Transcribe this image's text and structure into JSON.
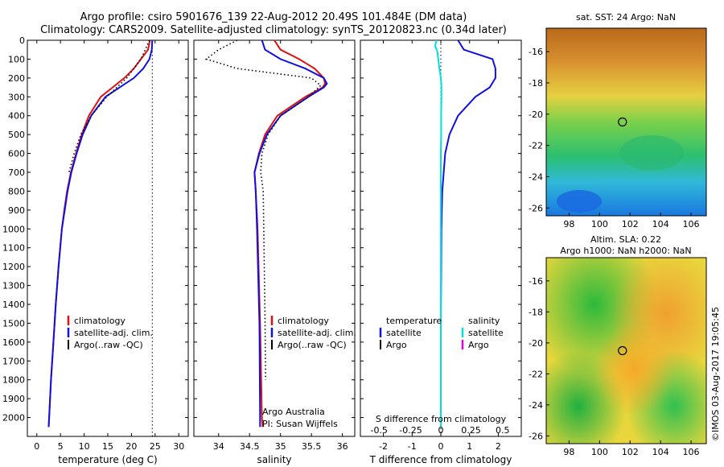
{
  "header": {
    "line1": "Argo profile: csiro 5901676_139 22-Aug-2012 20.49S 101.484E (DM data)",
    "line2": "Climatology: CARS2009. Satellite-adjusted climatology: synTS_20120823.nc (0.34d later)"
  },
  "depth_ticks": [
    "0",
    "100",
    "200",
    "300",
    "400",
    "500",
    "600",
    "700",
    "800",
    "900",
    "1000",
    "1100",
    "1200",
    "1300",
    "1400",
    "1500",
    "1600",
    "1700",
    "1800",
    "1900",
    "2000"
  ],
  "colors": {
    "climatology": "#e01010",
    "satellite": "#1010e0",
    "argo": "#000000",
    "sal_satellite": "#00e0e0",
    "sal_argo": "#e000e0"
  },
  "chart_data": [
    {
      "type": "line",
      "xlabel": "temperature (deg C)",
      "x_ticks": [
        "0",
        "5",
        "10",
        "15",
        "20",
        "25",
        "30"
      ],
      "xlim": [
        -2,
        32
      ],
      "ylim": [
        2100,
        0
      ],
      "legend": [
        "climatology",
        "satellite-adj. clim.",
        "Argo(..raw -QC)"
      ],
      "reference_line_x": 24.4,
      "series": [
        {
          "name": "climatology",
          "color": "#e01010",
          "depth": [
            0,
            50,
            100,
            150,
            200,
            250,
            300,
            400,
            500,
            600,
            700,
            800,
            900,
            1000,
            1200,
            1400,
            1600,
            1800,
            2000,
            2050
          ],
          "values": [
            23.9,
            23.5,
            22.0,
            20.5,
            18.5,
            16.0,
            13.5,
            11.0,
            9.5,
            8.3,
            7.2,
            6.4,
            5.8,
            5.3,
            4.6,
            4.0,
            3.5,
            3.0,
            2.6,
            2.5
          ]
        },
        {
          "name": "satellite-adj. clim.",
          "color": "#1010e0",
          "depth": [
            0,
            50,
            100,
            150,
            200,
            250,
            300,
            400,
            500,
            600,
            700,
            800,
            900,
            1000,
            1200,
            1400,
            1600,
            1800,
            2000,
            2050
          ],
          "values": [
            24.4,
            24.3,
            23.8,
            22.5,
            20.5,
            17.5,
            14.5,
            11.5,
            9.7,
            8.4,
            7.3,
            6.5,
            5.9,
            5.3,
            4.6,
            4.0,
            3.5,
            3.0,
            2.6,
            2.5
          ]
        },
        {
          "name": "Argo(..raw -QC)",
          "color": "#000000",
          "depth": [
            0,
            100,
            200,
            300,
            400,
            500,
            600,
            700
          ],
          "values": [
            23.8,
            22.0,
            19.0,
            14.8,
            11.5,
            9.3,
            7.9,
            6.8
          ]
        }
      ]
    },
    {
      "type": "line",
      "xlabel": "salinity",
      "x_ticks": [
        "34",
        "34.5",
        "35",
        "35.5",
        "36"
      ],
      "xlim": [
        33.6,
        36.2
      ],
      "ylim": [
        2100,
        0
      ],
      "legend": [
        "climatology",
        "satellite-adj. clim.",
        "Argo(..raw -QC)"
      ],
      "annotations": [
        "Argo Australia",
        "PI: Susan Wijffels"
      ],
      "series": [
        {
          "name": "climatology",
          "color": "#e01010",
          "depth": [
            0,
            50,
            100,
            150,
            200,
            230,
            250,
            300,
            400,
            500,
            600,
            700,
            800,
            1000,
            1500,
            2000,
            2050
          ],
          "values": [
            34.9,
            35.0,
            35.3,
            35.55,
            35.7,
            35.72,
            35.68,
            35.4,
            34.95,
            34.75,
            34.65,
            34.58,
            34.6,
            34.63,
            34.67,
            34.7,
            34.71
          ]
        },
        {
          "name": "satellite-adj. clim.",
          "color": "#1010e0",
          "depth": [
            0,
            50,
            100,
            150,
            200,
            230,
            250,
            300,
            400,
            500,
            600,
            700,
            800,
            1000,
            1500,
            2000,
            2050
          ],
          "values": [
            34.7,
            34.75,
            35.0,
            35.4,
            35.7,
            35.75,
            35.7,
            35.45,
            35.0,
            34.78,
            34.66,
            34.58,
            34.6,
            34.62,
            34.66,
            34.67,
            34.67
          ]
        },
        {
          "name": "Argo(..raw -QC)",
          "color": "#000000",
          "depth": [
            0,
            50,
            100,
            150,
            200,
            240,
            300,
            400,
            500,
            600,
            700,
            800,
            1000,
            1500,
            1800
          ],
          "values": [
            34.3,
            34.0,
            33.8,
            34.3,
            35.5,
            35.65,
            35.45,
            35.0,
            34.8,
            34.7,
            34.68,
            34.72,
            34.73,
            34.75,
            34.76
          ]
        }
      ]
    },
    {
      "type": "line",
      "xlabel": "T difference from climatology",
      "x_ticks": [
        "-2",
        "-1",
        "0",
        "1",
        "2"
      ],
      "top_label": "S difference from climatology",
      "top_ticks": [
        "-0.5",
        "-0.25",
        "0",
        "0.25",
        "0.5"
      ],
      "xlim": [
        -2.8,
        2.8
      ],
      "ylim": [
        2100,
        0
      ],
      "legend_headers": [
        "temperature",
        "salinity"
      ],
      "legend": [
        "satellite",
        "Argo",
        "satellite",
        "Argo"
      ],
      "series": [
        {
          "name": "temperature satellite",
          "color": "#1010e0",
          "depth": [
            0,
            50,
            100,
            150,
            200,
            250,
            300,
            400,
            500,
            600,
            700,
            800,
            1000,
            1500,
            2000,
            2050
          ],
          "values": [
            0.6,
            0.8,
            1.8,
            1.9,
            1.9,
            1.7,
            1.2,
            0.6,
            0.3,
            0.15,
            0.1,
            0.05,
            0.02,
            0.0,
            0.0,
            0.0
          ]
        },
        {
          "name": "salinity satellite",
          "color": "#00e0e0",
          "depth": [
            0,
            30,
            60,
            100,
            150,
            200,
            240,
            300,
            400,
            500,
            600,
            700,
            800,
            1000,
            1500,
            2000,
            2050
          ],
          "values": [
            -0.15,
            -0.2,
            -0.12,
            -0.09,
            -0.05,
            0.0,
            0.02,
            0.02,
            0.01,
            0.01,
            0.0,
            0.0,
            0.0,
            0.0,
            0.0,
            0.0,
            0.0
          ]
        }
      ]
    },
    {
      "type": "heatmap",
      "title": "sat. SST: 24 Argo: NaN",
      "x_ticks": [
        "98",
        "100",
        "102",
        "104",
        "106"
      ],
      "y_ticks": [
        "-16",
        "-18",
        "-20",
        "-22",
        "-24",
        "-26"
      ],
      "xlim": [
        96.5,
        107
      ],
      "ylim": [
        -26.5,
        -14.5
      ],
      "marker": [
        101.5,
        -20.5
      ]
    },
    {
      "type": "heatmap",
      "title_line1": "Altim. SLA: 0.22",
      "title_line2": "Argo h1000: NaN h2000: NaN",
      "x_ticks": [
        "98",
        "100",
        "102",
        "104",
        "106"
      ],
      "y_ticks": [
        "-16",
        "-18",
        "-20",
        "-22",
        "-24",
        "-26"
      ],
      "xlim": [
        96.5,
        107
      ],
      "ylim": [
        -26.5,
        -14.5
      ],
      "marker": [
        101.5,
        -20.5
      ]
    }
  ],
  "sidebar_stamp": "©IMOS 03-Aug-2017 19:05:45"
}
